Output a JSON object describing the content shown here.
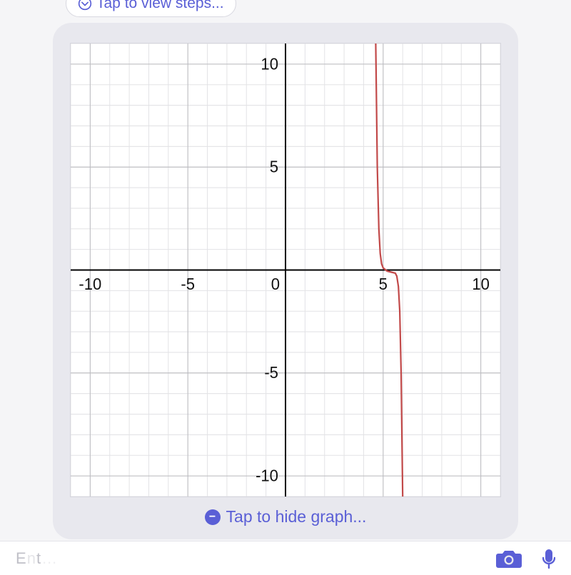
{
  "top_link": {
    "label": "Tap to view steps..."
  },
  "hide_link": {
    "label": "Tap to hide graph..."
  },
  "chart": {
    "type": "line",
    "xlim": [
      -11,
      11
    ],
    "ylim": [
      -11,
      11
    ],
    "major_tick_step": 5,
    "minor_tick_step": 1,
    "x_tick_labels": [
      {
        "v": -10,
        "t": "-10"
      },
      {
        "v": -5,
        "t": "-5"
      },
      {
        "v": 0,
        "t": "0"
      },
      {
        "v": 5,
        "t": "5"
      },
      {
        "v": 10,
        "t": "10"
      }
    ],
    "y_tick_labels": [
      {
        "v": 10,
        "t": "10"
      },
      {
        "v": 5,
        "t": "5"
      },
      {
        "v": -5,
        "t": "-5"
      },
      {
        "v": -10,
        "t": "-10"
      }
    ],
    "background_color": "#ffffff",
    "minor_grid_color": "#e3e3e6",
    "major_grid_color": "#bcbcc0",
    "axis_color": "#000000",
    "curve_color": "#c24a4a",
    "curve_width": 2.2,
    "axis_label_fontsize": 22,
    "curve_points": [
      [
        4.62,
        11
      ],
      [
        4.7,
        5.0
      ],
      [
        4.78,
        2.0
      ],
      [
        4.85,
        0.8
      ],
      [
        4.92,
        0.3
      ],
      [
        5.0,
        0.1
      ],
      [
        5.2,
        -0.05
      ],
      [
        5.4,
        -0.1
      ],
      [
        5.62,
        -0.15
      ],
      [
        5.7,
        -0.3
      ],
      [
        5.78,
        -0.8
      ],
      [
        5.85,
        -2.0
      ],
      [
        5.92,
        -5.0
      ],
      [
        6.0,
        -11
      ]
    ]
  },
  "colors": {
    "link": "#5a5fd6",
    "card_bg": "#e8e8ee",
    "camera_icon": "#5a5fd6",
    "mic_icon": "#5a5fd6"
  }
}
